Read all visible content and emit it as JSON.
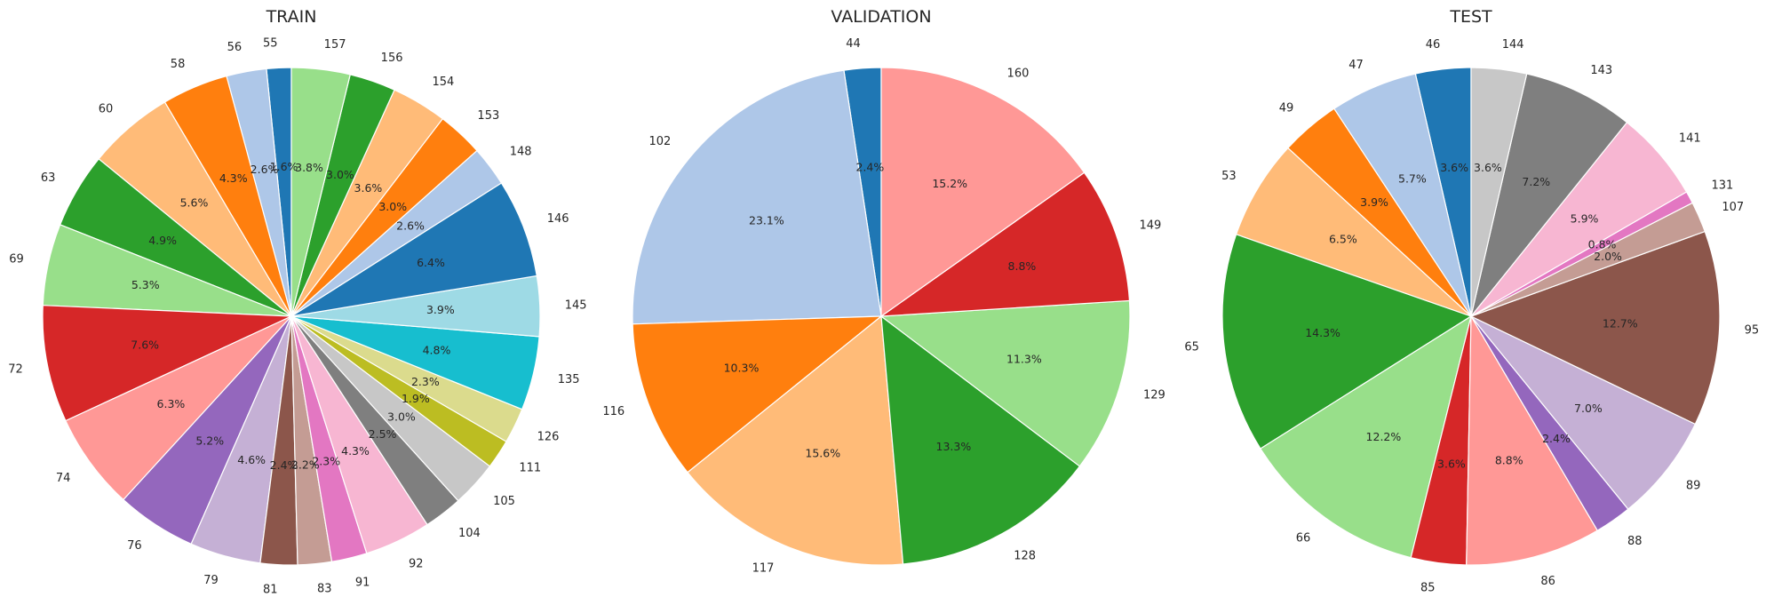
{
  "chart_data": [
    {
      "type": "pie",
      "title": "TRAIN",
      "categories": [
        "55",
        "56",
        "58",
        "60",
        "63",
        "69",
        "72",
        "74",
        "76",
        "79",
        "81",
        "83",
        "91",
        "92",
        "104",
        "105",
        "111",
        "126",
        "135",
        "145",
        "146",
        "148",
        "153",
        "154",
        "156",
        "157"
      ],
      "values": [
        1.6,
        2.6,
        4.3,
        5.6,
        4.9,
        5.3,
        7.6,
        6.3,
        5.2,
        4.6,
        2.4,
        2.2,
        2.3,
        4.3,
        2.5,
        3.0,
        1.9,
        2.3,
        4.8,
        3.9,
        6.4,
        2.6,
        3.0,
        3.6,
        3.0,
        3.8
      ],
      "value_labels": [
        "1.6%",
        "2.6%",
        "4.3%",
        "5.6%",
        "4.9%",
        "5.3%",
        "7.6%",
        "6.3%",
        "5.2%",
        "4.6%",
        "2.4%",
        "2.2%",
        "2.3%",
        "4.3%",
        "2.5%",
        "3.0%",
        "1.9%",
        "2.3%",
        "4.8%",
        "3.9%",
        "6.4%",
        "2.6%",
        "3.0%",
        "3.6%",
        "3.0%",
        "3.8%"
      ],
      "colors": [
        "#1f77b4",
        "#aec7e8",
        "#ff7f0e",
        "#ffbb78",
        "#2ca02c",
        "#98df8a",
        "#d62728",
        "#ff9896",
        "#9467bd",
        "#c5b0d5",
        "#8c564b",
        "#c49c94",
        "#e377c2",
        "#f7b6d2",
        "#7f7f7f",
        "#c7c7c7",
        "#bcbd22",
        "#dbdb8d",
        "#17becf",
        "#9edae5",
        "#1f77b4",
        "#aec7e8",
        "#ff7f0e",
        "#ffbb78",
        "#2ca02c",
        "#98df8a"
      ],
      "start_angle": 90,
      "direction": "counterclockwise"
    },
    {
      "type": "pie",
      "title": "VALIDATION",
      "categories": [
        "44",
        "102",
        "116",
        "117",
        "128",
        "129",
        "149",
        "160"
      ],
      "values": [
        2.4,
        23.1,
        10.3,
        15.6,
        13.3,
        11.3,
        8.8,
        15.2
      ],
      "value_labels": [
        "2.4%",
        "23.1%",
        "10.3%",
        "15.6%",
        "13.3%",
        "11.3%",
        "8.8%",
        "15.2%"
      ],
      "colors": [
        "#1f77b4",
        "#aec7e8",
        "#ff7f0e",
        "#ffbb78",
        "#2ca02c",
        "#98df8a",
        "#d62728",
        "#ff9896"
      ],
      "start_angle": 90,
      "direction": "counterclockwise"
    },
    {
      "type": "pie",
      "title": "TEST",
      "categories": [
        "46",
        "47",
        "49",
        "53",
        "65",
        "66",
        "85",
        "86",
        "88",
        "89",
        "95",
        "107",
        "131",
        "141",
        "143",
        "144"
      ],
      "values": [
        3.6,
        5.7,
        3.9,
        6.5,
        14.3,
        12.2,
        3.6,
        8.8,
        2.4,
        7.0,
        12.7,
        2.0,
        0.8,
        5.9,
        7.2,
        3.6
      ],
      "value_labels": [
        "3.6%",
        "5.7%",
        "3.9%",
        "6.5%",
        "14.3%",
        "12.2%",
        "3.6%",
        "8.8%",
        "2.4%",
        "7.0%",
        "12.7%",
        "2.0%",
        "0.8%",
        "5.9%",
        "7.2%",
        "3.6%"
      ],
      "colors": [
        "#1f77b4",
        "#aec7e8",
        "#ff7f0e",
        "#ffbb78",
        "#2ca02c",
        "#98df8a",
        "#d62728",
        "#ff9896",
        "#9467bd",
        "#c5b0d5",
        "#8c564b",
        "#c49c94",
        "#e377c2",
        "#f7b6d2",
        "#7f7f7f",
        "#c7c7c7"
      ],
      "start_angle": 90,
      "direction": "counterclockwise"
    }
  ]
}
